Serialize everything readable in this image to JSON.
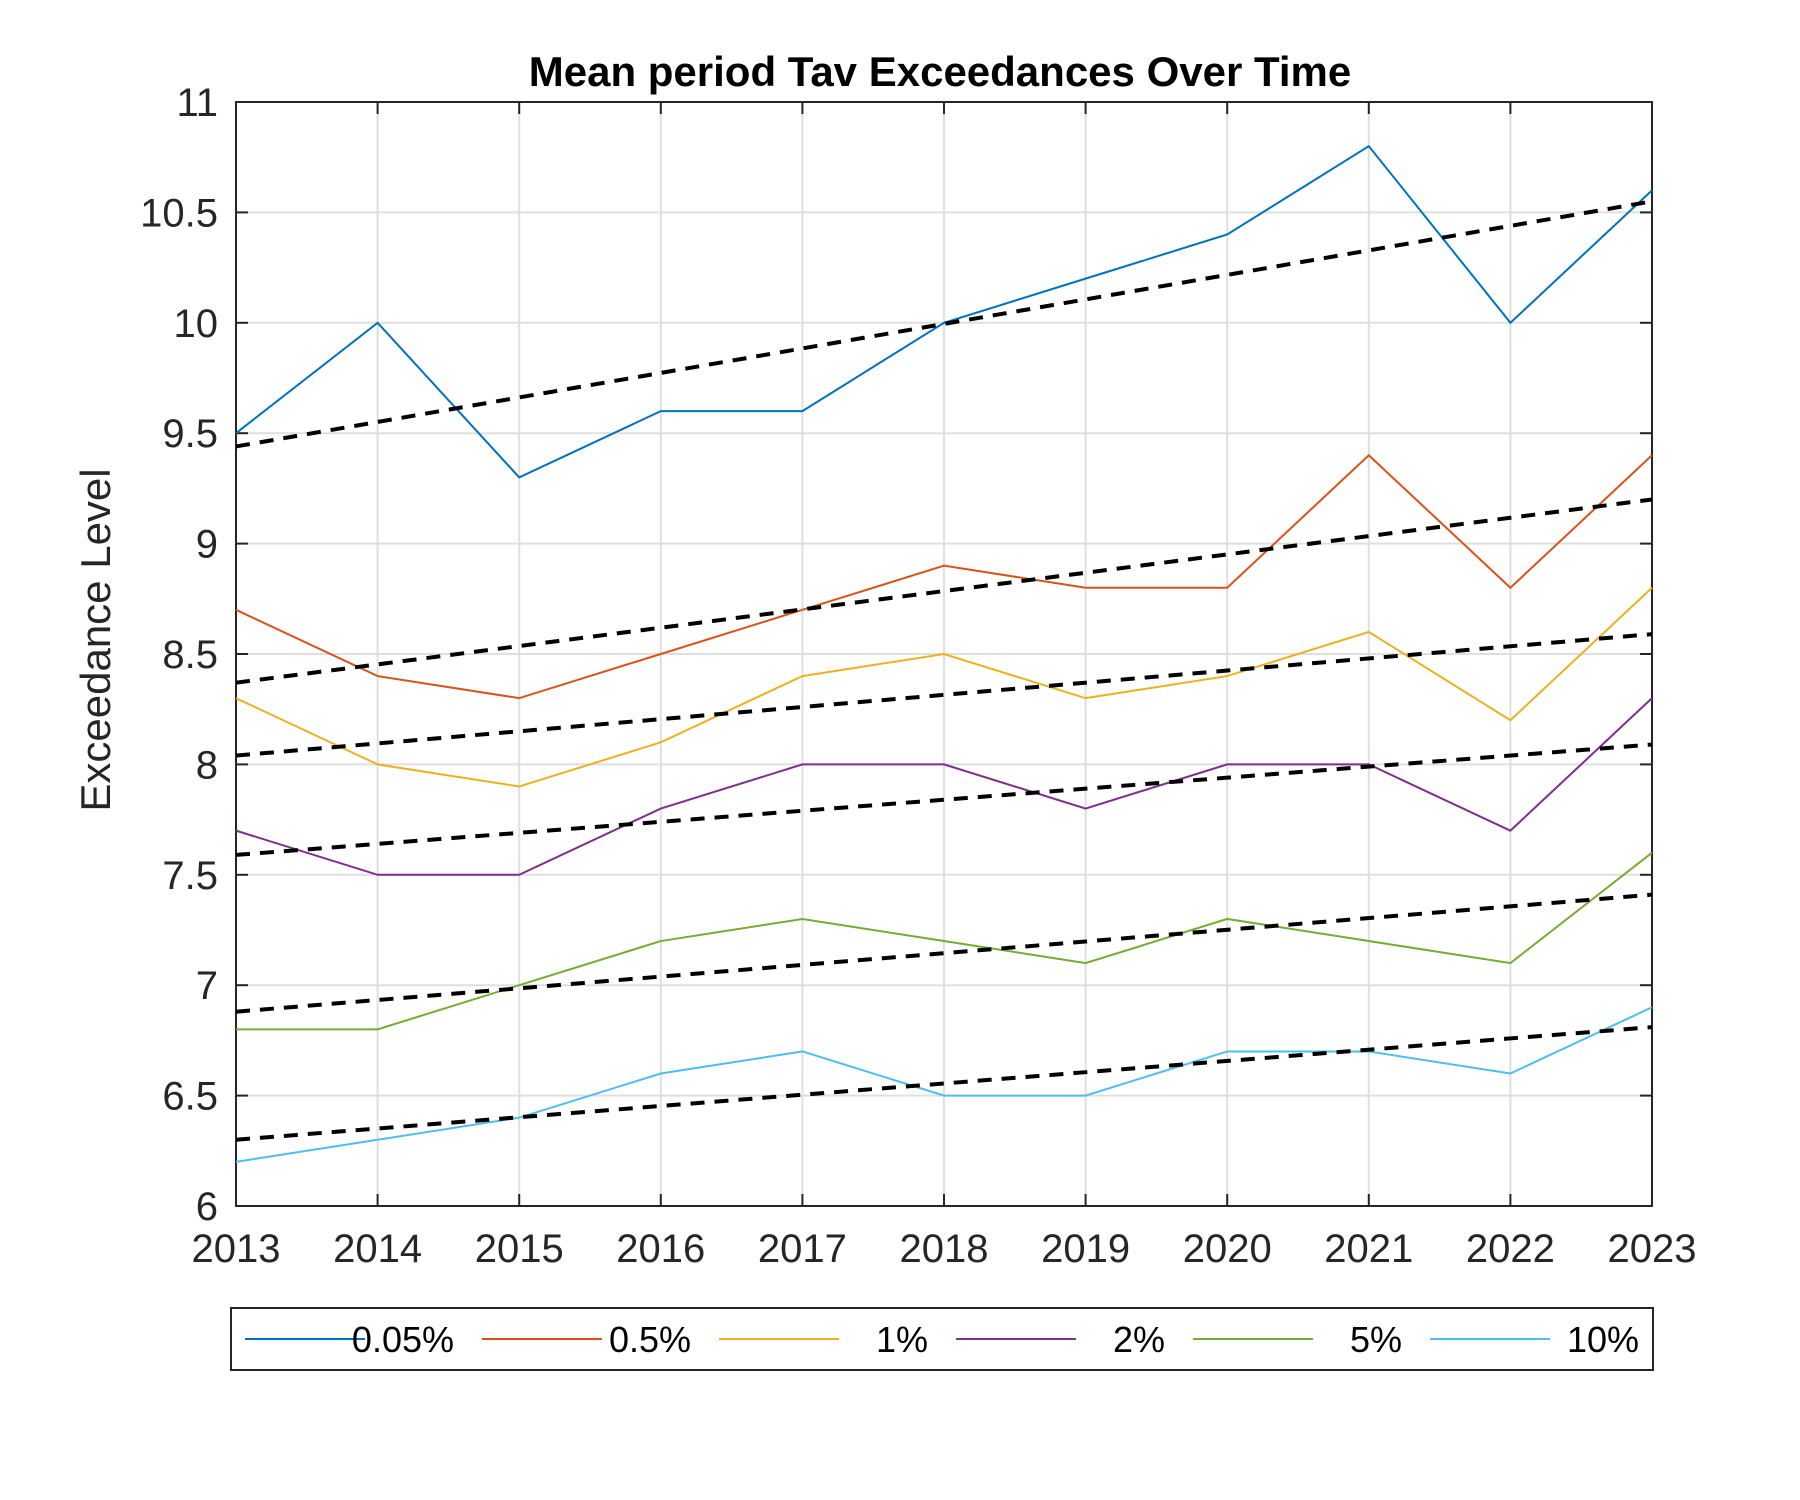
{
  "chart_data": {
    "type": "line",
    "title": "Mean period Tav Exceedances Over Time",
    "xlabel": "",
    "ylabel": "Exceedance Level",
    "x": [
      2013,
      2014,
      2015,
      2016,
      2017,
      2018,
      2019,
      2020,
      2021,
      2022,
      2023
    ],
    "xlim": [
      2013,
      2023
    ],
    "ylim": [
      6,
      11
    ],
    "xticks": [
      "2013",
      "2014",
      "2015",
      "2016",
      "2017",
      "2018",
      "2019",
      "2020",
      "2021",
      "2022",
      "2023"
    ],
    "yticks": [
      "6",
      "6.5",
      "7",
      "7.5",
      "8",
      "8.5",
      "9",
      "9.5",
      "10",
      "10.5",
      "11"
    ],
    "grid": true,
    "legend_position": "bottom",
    "series": [
      {
        "name": "0.05%",
        "color": "#0072BD",
        "values": [
          9.5,
          10.0,
          9.3,
          9.6,
          9.6,
          10.0,
          10.2,
          10.4,
          10.8,
          10.0,
          10.6
        ],
        "trend": [
          9.44,
          10.55
        ]
      },
      {
        "name": "0.5%",
        "color": "#D95319",
        "values": [
          8.7,
          8.4,
          8.3,
          8.5,
          8.7,
          8.9,
          8.8,
          8.8,
          9.4,
          8.8,
          9.4
        ],
        "trend": [
          8.37,
          9.2
        ]
      },
      {
        "name": "1%",
        "color": "#EDB120",
        "values": [
          8.3,
          8.0,
          7.9,
          8.1,
          8.4,
          8.5,
          8.3,
          8.4,
          8.6,
          8.2,
          8.8
        ],
        "trend": [
          8.04,
          8.59
        ]
      },
      {
        "name": "2%",
        "color": "#7E2F8E",
        "values": [
          7.7,
          7.5,
          7.5,
          7.8,
          8.0,
          8.0,
          7.8,
          8.0,
          8.0,
          7.7,
          8.3
        ],
        "trend": [
          7.59,
          8.09
        ]
      },
      {
        "name": "5%",
        "color": "#77AC30",
        "values": [
          6.8,
          6.8,
          7.0,
          7.2,
          7.3,
          7.2,
          7.1,
          7.3,
          7.2,
          7.1,
          7.6
        ],
        "trend": [
          6.88,
          7.41
        ]
      },
      {
        "name": "10%",
        "color": "#4DBEEE",
        "values": [
          6.2,
          6.3,
          6.4,
          6.6,
          6.7,
          6.5,
          6.5,
          6.7,
          6.7,
          6.6,
          6.9
        ],
        "trend": [
          6.3,
          6.81
        ]
      }
    ]
  }
}
